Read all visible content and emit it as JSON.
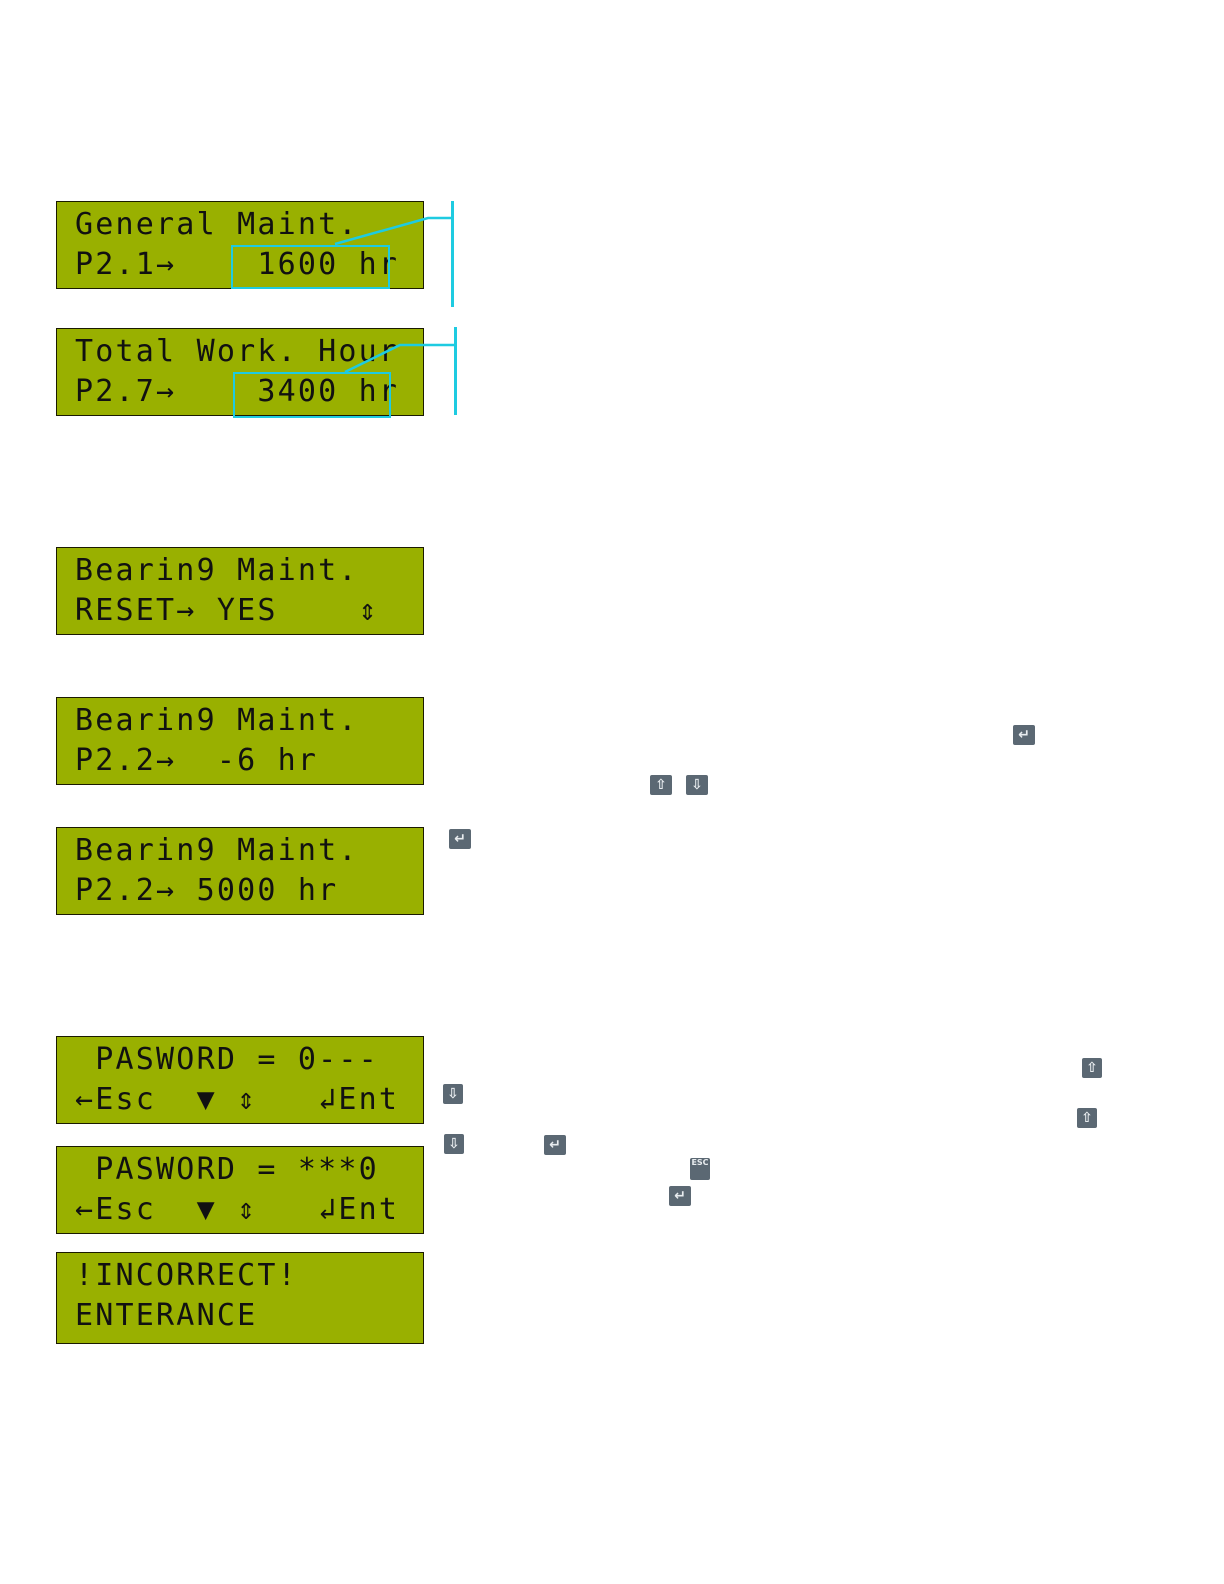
{
  "lcd_color": "#99b000",
  "callout_color": "#1ecbe1",
  "displays": [
    {
      "line1": "General Maint.",
      "line2": "P2.1→    1600 hr"
    },
    {
      "line1": "Total Work. Hour",
      "line2": "P2.7→    3400 hr"
    },
    {
      "line1": "Bearin9 Maint.",
      "line2": "RESET→ YES    ⇕"
    },
    {
      "line1": "Bearin9 Maint.",
      "line2": "P2.2→  -6 hr"
    },
    {
      "line1": "Bearin9 Maint.",
      "line2": "P2.2→ 5000 hr"
    },
    {
      "line1": " PASWORD = 0---",
      "line2": "←Esc  ▼ ⇕   ↲Ent"
    },
    {
      "line1": " PASWORD = ***0",
      "line2": "←Esc  ▼ ⇕   ↲Ent"
    },
    {
      "line1": "!INCORRECT!",
      "line2": "ENTERANCE"
    }
  ],
  "keys": {
    "enter": "↵",
    "up": "⇧",
    "down": "⇩",
    "esc": "ESC"
  }
}
